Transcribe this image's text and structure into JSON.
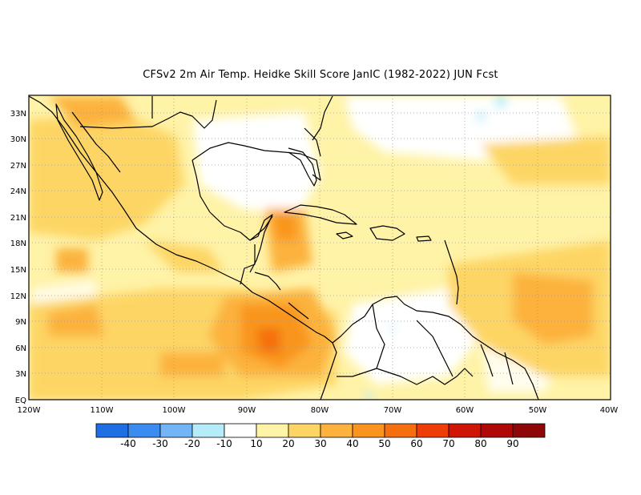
{
  "title": "CFSv2  2m Air Temp. Heidke Skill Score JanIC (1982-2022) JUN Fcst",
  "map": {
    "lat_labels": [
      "33N",
      "30N",
      "27N",
      "24N",
      "21N",
      "18N",
      "15N",
      "12N",
      "9N",
      "6N",
      "3N",
      "EQ"
    ],
    "lon_labels": [
      "120W",
      "110W",
      "100W",
      "90W",
      "80W",
      "70W",
      "60W",
      "50W",
      "40W"
    ],
    "lat_range": [
      0,
      35
    ],
    "lon_range": [
      -120,
      -40
    ],
    "grid": "dotted"
  },
  "colorbar": {
    "labels": [
      "-40",
      "-30",
      "-20",
      "-10",
      "10",
      "20",
      "30",
      "40",
      "50",
      "60",
      "70",
      "80",
      "90"
    ],
    "colors": [
      "#1e6fe3",
      "#3a8cf0",
      "#72b4f5",
      "#b4ecfa",
      "#ffffff",
      "#fff3a8",
      "#fdd565",
      "#fcb23d",
      "#f9951f",
      "#f56f0f",
      "#ee3d06",
      "#cf1506",
      "#b00807",
      "#8f0606"
    ]
  },
  "color_key": {
    "land_outline": "#000000",
    "border": "#000000",
    "grid": "#9a9a9a"
  }
}
